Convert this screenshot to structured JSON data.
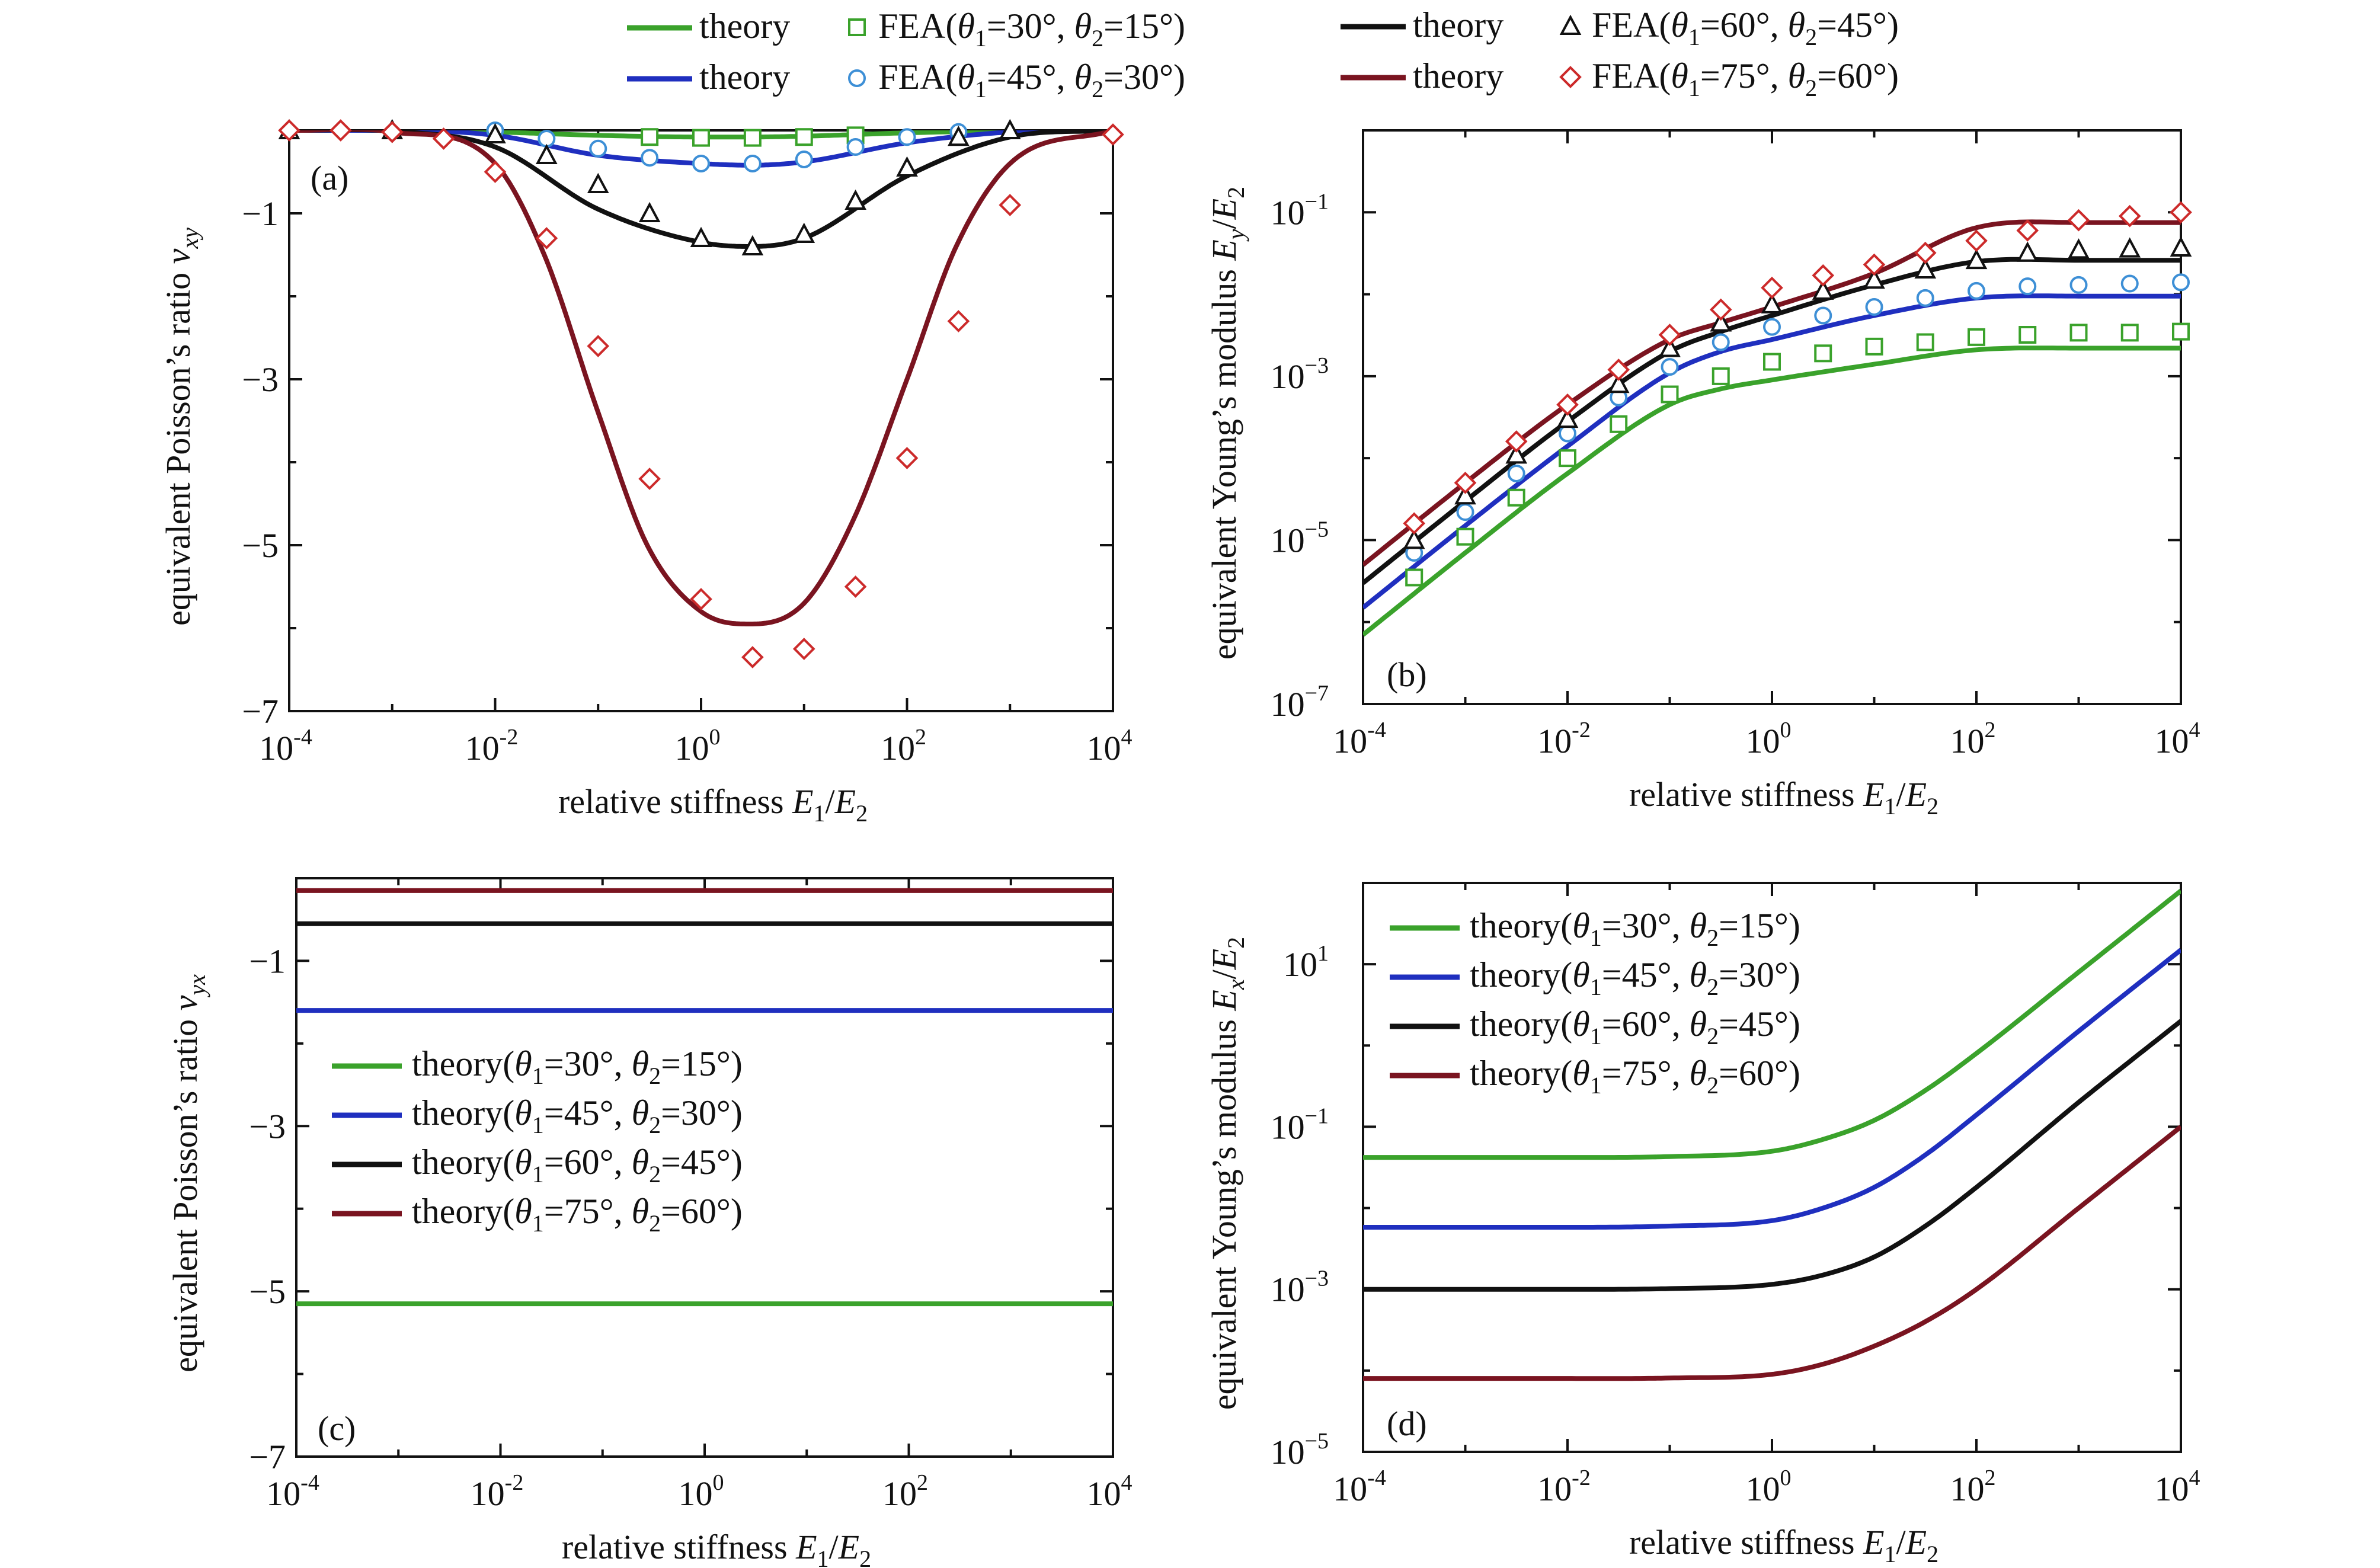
{
  "figure": {
    "top_legend": [
      {
        "theory_label": "theory",
        "fea_label": "FEA",
        "t1": "=30°",
        "t2": "=15°",
        "color": "#3aa22b",
        "marker": "square"
      },
      {
        "theory_label": "theory",
        "fea_label": "FEA",
        "t1": "=45°",
        "t2": "=30°",
        "color": "#1f2fbf",
        "marker": "circle",
        "marker_stroke": "#3d8fd6"
      },
      {
        "theory_label": "theory",
        "fea_label": "FEA",
        "t1": "=60°",
        "t2": "=45°",
        "color": "#111111",
        "marker": "triangle"
      },
      {
        "theory_label": "theory",
        "fea_label": "FEA",
        "t1": "=75°",
        "t2": "=60°",
        "color": "#7a1420",
        "marker": "diamond",
        "marker_stroke": "#cc2a2a"
      }
    ],
    "theta1_symbol": "θ",
    "theta1_sub": "1",
    "theta2_symbol": "θ",
    "theta2_sub": "2"
  },
  "chart_data": [
    {
      "panel": "(a)",
      "type": "line",
      "xscale": "log",
      "xlim": [
        0.0001,
        10000
      ],
      "ylim": [
        -7,
        0
      ],
      "xticks": [
        "10^-4",
        "10^-2",
        "10^0",
        "10^2",
        "10^4"
      ],
      "yticks": [
        -1,
        -3,
        -5,
        -7
      ],
      "xlabel": "relative stiffness E1/E2",
      "ylabel": "equivalent Poisson's ratio ν_xy",
      "series": [
        {
          "name": "theory (θ1=30°, θ2=15°)",
          "color": "#3aa22b",
          "x": [
            0.0001,
            0.001,
            0.01,
            0.1,
            1,
            3,
            10,
            100,
            1000,
            10000
          ],
          "y": [
            0,
            0,
            -0.02,
            -0.06,
            -0.08,
            -0.08,
            -0.07,
            -0.03,
            -0.005,
            0
          ]
        },
        {
          "name": "theory (θ1=45°, θ2=30°)",
          "color": "#1f2fbf",
          "x": [
            0.0001,
            0.001,
            0.01,
            0.1,
            1,
            3,
            10,
            100,
            1000,
            10000
          ],
          "y": [
            0,
            0,
            -0.06,
            -0.3,
            -0.4,
            -0.42,
            -0.38,
            -0.15,
            -0.02,
            0
          ]
        },
        {
          "name": "theory (θ1=60°, θ2=45°)",
          "color": "#111111",
          "x": [
            0.0001,
            0.001,
            0.01,
            0.1,
            1,
            3,
            10,
            100,
            1000,
            10000
          ],
          "y": [
            0,
            -0.01,
            -0.2,
            -0.95,
            -1.35,
            -1.4,
            -1.3,
            -0.55,
            -0.08,
            0
          ]
        },
        {
          "name": "theory (θ1=75°, θ2=60°)",
          "color": "#7a1420",
          "x": [
            0.0001,
            0.001,
            0.01,
            0.03,
            0.1,
            0.3,
            1,
            3,
            10,
            30,
            100,
            300,
            1000,
            10000
          ],
          "y": [
            0,
            -0.02,
            -0.4,
            -1.5,
            -3.4,
            -5.0,
            -5.8,
            -5.95,
            -5.7,
            -4.7,
            -3.0,
            -1.4,
            -0.4,
            0
          ]
        },
        {
          "name": "FEA (θ1=30°, θ2=15°)",
          "marker": "square",
          "color": "#3aa22b",
          "x": [
            0.3162,
            1,
            3.162,
            10,
            31.62
          ],
          "y": [
            -0.08,
            -0.09,
            -0.09,
            -0.08,
            -0.06
          ]
        },
        {
          "name": "FEA (θ1=45°, θ2=30°)",
          "marker": "circle",
          "color": "#3d8fd6",
          "x": [
            0.01,
            0.0316,
            0.1,
            0.3162,
            1,
            3.162,
            10,
            31.62,
            100,
            316.2
          ],
          "y": [
            0,
            -0.1,
            -0.22,
            -0.33,
            -0.4,
            -0.4,
            -0.35,
            -0.2,
            -0.08,
            -0.02
          ]
        },
        {
          "name": "FEA (θ1=60°, θ2=45°)",
          "marker": "triangle",
          "color": "#111111",
          "x": [
            0.0001,
            0.001,
            0.01,
            0.0316,
            0.1,
            0.3162,
            1,
            3.162,
            10,
            31.62,
            100,
            316.2,
            1000
          ],
          "y": [
            0,
            0,
            -0.05,
            -0.3,
            -0.65,
            -1.0,
            -1.3,
            -1.4,
            -1.25,
            -0.85,
            -0.45,
            -0.08,
            0
          ]
        },
        {
          "name": "FEA (θ1=75°, θ2=60°)",
          "marker": "diamond",
          "color": "#cc2a2a",
          "x": [
            0.0001,
            0.000316,
            0.001,
            0.00316,
            0.01,
            0.0316,
            0.1,
            0.3162,
            1,
            3.162,
            10,
            31.62,
            100,
            316.2,
            1000,
            10000
          ],
          "y": [
            0,
            0,
            -0.02,
            -0.1,
            -0.5,
            -1.3,
            -2.6,
            -4.2,
            -5.65,
            -6.35,
            -6.25,
            -5.5,
            -3.95,
            -2.3,
            -0.9,
            -0.05
          ]
        }
      ]
    },
    {
      "panel": "(b)",
      "type": "line",
      "xscale": "log",
      "yscale": "log",
      "xlim": [
        0.0001,
        10000
      ],
      "ylim": [
        1e-07,
        1
      ],
      "xticks": [
        "10^-4",
        "10^-2",
        "10^0",
        "10^2",
        "10^4"
      ],
      "yticks": [
        "10^-1",
        "10^-3",
        "10^-5",
        "10^-7"
      ],
      "xlabel": "relative stiffness E1/E2",
      "ylabel": "equivalent Young's modulus Ey/E2",
      "series": [
        {
          "name": "theory (θ1=30°, θ2=15°)",
          "color": "#3aa22b",
          "x": [
            0.0001,
            0.001,
            0.01,
            0.1,
            0.3162,
            1,
            10,
            100,
            1000,
            10000
          ],
          "y": [
            7e-07,
            7e-06,
            6.5e-05,
            0.00045,
            0.0007,
            0.0009,
            0.0014,
            0.0021,
            0.0022,
            0.0022
          ]
        },
        {
          "name": "theory (θ1=45°, θ2=30°)",
          "color": "#1f2fbf",
          "x": [
            0.0001,
            0.001,
            0.01,
            0.1,
            0.3162,
            1,
            10,
            100,
            1000,
            10000
          ],
          "y": [
            1.5e-06,
            1.5e-05,
            0.00014,
            0.0011,
            0.002,
            0.0028,
            0.0055,
            0.009,
            0.0095,
            0.0095
          ]
        },
        {
          "name": "theory (θ1=60°, θ2=45°)",
          "color": "#111111",
          "x": [
            0.0001,
            0.001,
            0.01,
            0.1,
            0.3162,
            1,
            10,
            100,
            1000,
            10000
          ],
          "y": [
            3e-06,
            3e-05,
            0.00028,
            0.002,
            0.0035,
            0.0055,
            0.013,
            0.025,
            0.026,
            0.026
          ]
        },
        {
          "name": "theory (θ1=75°, θ2=60°)",
          "color": "#7a1420",
          "x": [
            0.0001,
            0.001,
            0.01,
            0.1,
            0.3162,
            1,
            10,
            100,
            1000,
            10000
          ],
          "y": [
            5e-06,
            5e-05,
            0.00045,
            0.0028,
            0.0045,
            0.007,
            0.018,
            0.065,
            0.075,
            0.075
          ]
        },
        {
          "name": "FEA (θ1=30°, θ2=15°)",
          "marker": "square",
          "color": "#3aa22b",
          "x": [
            0.000316,
            0.001,
            0.00316,
            0.01,
            0.0316,
            0.1,
            0.3162,
            1,
            3.162,
            10,
            31.62,
            100,
            316.2,
            1000,
            3162,
            10000
          ],
          "y": [
            3.5e-06,
            1.1e-05,
            3.3e-05,
            0.0001,
            0.00026,
            0.0006,
            0.001,
            0.0015,
            0.0019,
            0.0023,
            0.0026,
            0.003,
            0.0032,
            0.0034,
            0.0034,
            0.0035
          ]
        },
        {
          "name": "FEA (θ1=45°, θ2=30°)",
          "marker": "circle",
          "color": "#3d8fd6",
          "x": [
            0.000316,
            0.001,
            0.00316,
            0.01,
            0.0316,
            0.1,
            0.3162,
            1,
            3.162,
            10,
            31.62,
            100,
            316.2,
            1000,
            3162,
            10000
          ],
          "y": [
            7e-06,
            2.2e-05,
            6.5e-05,
            0.0002,
            0.00055,
            0.0013,
            0.0026,
            0.004,
            0.0055,
            0.007,
            0.009,
            0.011,
            0.0125,
            0.013,
            0.0135,
            0.014
          ]
        },
        {
          "name": "FEA (θ1=60°, θ2=45°)",
          "marker": "triangle",
          "color": "#111111",
          "x": [
            0.000316,
            0.001,
            0.00316,
            0.01,
            0.0316,
            0.1,
            0.3162,
            1,
            3.162,
            10,
            31.62,
            100,
            316.2,
            1000,
            3162,
            10000
          ],
          "y": [
            1e-05,
            3.5e-05,
            0.00011,
            0.0003,
            0.0008,
            0.0022,
            0.0045,
            0.0075,
            0.011,
            0.015,
            0.02,
            0.026,
            0.032,
            0.035,
            0.036,
            0.037
          ]
        },
        {
          "name": "FEA (θ1=75°, θ2=60°)",
          "marker": "diamond",
          "color": "#cc2a2a",
          "x": [
            0.000316,
            0.001,
            0.00316,
            0.01,
            0.0316,
            0.1,
            0.3162,
            1,
            3.162,
            10,
            31.62,
            100,
            316.2,
            1000,
            3162,
            10000
          ],
          "y": [
            1.6e-05,
            5e-05,
            0.00016,
            0.00045,
            0.0012,
            0.0032,
            0.0065,
            0.012,
            0.017,
            0.023,
            0.032,
            0.045,
            0.06,
            0.08,
            0.09,
            0.1
          ]
        }
      ]
    },
    {
      "panel": "(c)",
      "type": "line",
      "xscale": "log",
      "xlim": [
        0.0001,
        10000
      ],
      "ylim": [
        -7,
        0
      ],
      "xticks": [
        "10^-4",
        "10^-2",
        "10^0",
        "10^2",
        "10^4"
      ],
      "yticks": [
        -1,
        -3,
        -5,
        -7
      ],
      "xlabel": "relative stiffness E1/E2",
      "ylabel": "equivalent Poisson's ratio ν_yx",
      "series": [
        {
          "name": "theory (θ1=30°, θ2=15°)",
          "color": "#3aa22b",
          "x": [
            0.0001,
            10000
          ],
          "y": [
            -5.15,
            -5.15
          ]
        },
        {
          "name": "theory (θ1=45°, θ2=30°)",
          "color": "#1f2fbf",
          "x": [
            0.0001,
            10000
          ],
          "y": [
            -1.6,
            -1.6
          ]
        },
        {
          "name": "theory (θ1=60°, θ2=45°)",
          "color": "#111111",
          "x": [
            0.0001,
            10000
          ],
          "y": [
            -0.55,
            -0.55
          ]
        },
        {
          "name": "theory (θ1=75°, θ2=60°)",
          "color": "#7a1420",
          "x": [
            0.0001,
            10000
          ],
          "y": [
            -0.15,
            -0.15
          ]
        }
      ]
    },
    {
      "panel": "(d)",
      "type": "line",
      "xscale": "log",
      "yscale": "log",
      "xlim": [
        0.0001,
        10000
      ],
      "ylim": [
        1e-05,
        100
      ],
      "xticks": [
        "10^-4",
        "10^-2",
        "10^0",
        "10^2",
        "10^4"
      ],
      "yticks": [
        "10^1",
        "10^-1",
        "10^-3",
        "10^-5"
      ],
      "xlabel": "relative stiffness E1/E2",
      "ylabel": "equivalent Young's modulus Ex/E2",
      "series": [
        {
          "name": "theory (θ1=30°, θ2=15°)",
          "color": "#3aa22b",
          "x": [
            0.0001,
            0.01,
            0.1,
            1,
            3.162,
            10,
            31.62,
            100,
            1000,
            10000
          ],
          "y": [
            0.042,
            0.042,
            0.043,
            0.05,
            0.07,
            0.12,
            0.28,
            0.8,
            8,
            80
          ]
        },
        {
          "name": "theory (θ1=45°, θ2=30°)",
          "color": "#1f2fbf",
          "x": [
            0.0001,
            0.01,
            0.1,
            1,
            3.162,
            10,
            31.62,
            100,
            1000,
            10000
          ],
          "y": [
            0.0058,
            0.0058,
            0.006,
            0.007,
            0.01,
            0.018,
            0.045,
            0.14,
            1.5,
            15
          ]
        },
        {
          "name": "theory (θ1=60°, θ2=45°)",
          "color": "#111111",
          "x": [
            0.0001,
            0.01,
            0.1,
            1,
            3.162,
            10,
            31.62,
            100,
            1000,
            10000
          ],
          "y": [
            0.001,
            0.001,
            0.00102,
            0.00115,
            0.0015,
            0.0025,
            0.006,
            0.018,
            0.2,
            2
          ]
        },
        {
          "name": "theory (θ1=75°, θ2=60°)",
          "color": "#7a1420",
          "x": [
            0.0001,
            0.01,
            0.1,
            1,
            3.162,
            10,
            31.62,
            100,
            1000,
            10000
          ],
          "y": [
            8e-05,
            8e-05,
            8.1e-05,
            9e-05,
            0.00012,
            0.0002,
            0.0004,
            0.001,
            0.01,
            0.1
          ]
        }
      ]
    }
  ],
  "panel_legends": {
    "c": [
      {
        "label": "theory",
        "t1": "=30°",
        "t2": "=15°",
        "color": "#3aa22b"
      },
      {
        "label": "theory",
        "t1": "=45°",
        "t2": "=30°",
        "color": "#1f2fbf"
      },
      {
        "label": "theory",
        "t1": "=60°",
        "t2": "=45°",
        "color": "#111111"
      },
      {
        "label": "theory",
        "t1": "=75°",
        "t2": "=60°",
        "color": "#7a1420"
      }
    ],
    "d": [
      {
        "label": "theory",
        "t1": "=30°",
        "t2": "=15°",
        "color": "#3aa22b"
      },
      {
        "label": "theory",
        "t1": "=45°",
        "t2": "=30°",
        "color": "#1f2fbf"
      },
      {
        "label": "theory",
        "t1": "=60°",
        "t2": "=45°",
        "color": "#111111"
      },
      {
        "label": "theory",
        "t1": "=75°",
        "t2": "=60°",
        "color": "#7a1420"
      }
    ]
  },
  "labels": {
    "relative_stiffness": "relative stiffness ",
    "E": "E",
    "sub1": "1",
    "sub2": "2",
    "subx": "x",
    "suby": "y",
    "slash": "/",
    "poisson_prefix": "equivalent Poisson’s ratio ",
    "nu": "ν",
    "sub_xy": "xy",
    "sub_yx": "yx",
    "young_prefix": "equivalent Young’s modulus  ",
    "ten": "10"
  }
}
